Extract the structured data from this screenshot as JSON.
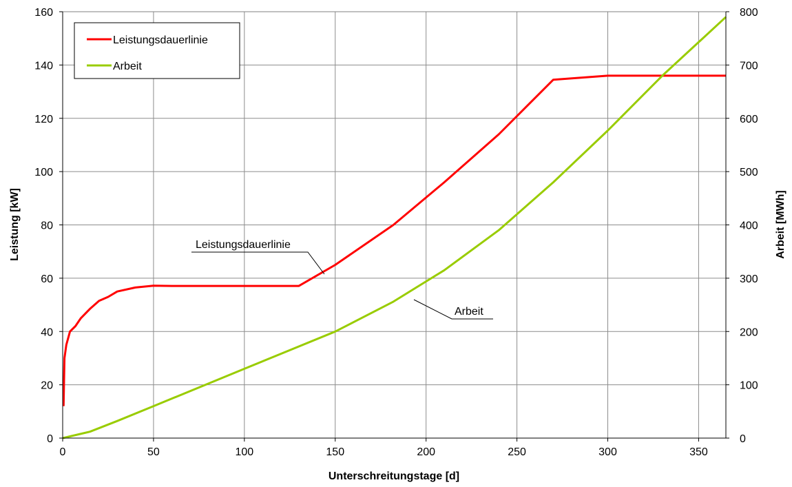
{
  "chart_data": {
    "type": "line",
    "title": "",
    "xlabel": "Unterschreitungstage [d]",
    "ylabel": "Leistung [kW]",
    "y2label": "Arbeit [MWh]",
    "xlim": [
      0,
      365
    ],
    "ylim": [
      0,
      160
    ],
    "y2lim": [
      0,
      800
    ],
    "x_ticks": [
      0,
      50,
      100,
      150,
      200,
      250,
      300,
      350
    ],
    "y_ticks": [
      0,
      20,
      40,
      60,
      80,
      100,
      120,
      140,
      160
    ],
    "y2_ticks": [
      0,
      100,
      200,
      300,
      400,
      500,
      600,
      700,
      800
    ],
    "grid": true,
    "legend_position": "top-left",
    "series": [
      {
        "name": "Leistungsdauerlinie",
        "axis": "left",
        "color": "#ff0000",
        "points": [
          [
            0.5,
            12
          ],
          [
            1,
            30
          ],
          [
            2,
            35
          ],
          [
            4,
            40
          ],
          [
            7,
            42
          ],
          [
            10,
            45
          ],
          [
            15,
            48.5
          ],
          [
            20,
            51.5
          ],
          [
            25,
            53
          ],
          [
            30,
            55
          ],
          [
            40,
            56.5
          ],
          [
            50,
            57.2
          ],
          [
            60,
            57.1
          ],
          [
            130,
            57.1
          ],
          [
            150,
            65
          ],
          [
            182,
            80
          ],
          [
            210,
            96
          ],
          [
            240,
            114
          ],
          [
            270,
            134.5
          ],
          [
            300,
            136
          ],
          [
            365,
            136
          ]
        ]
      },
      {
        "name": "Arbeit",
        "axis": "right",
        "color": "#99cc00",
        "points": [
          [
            0,
            0
          ],
          [
            15,
            12
          ],
          [
            30,
            32
          ],
          [
            50,
            60
          ],
          [
            100,
            130
          ],
          [
            150,
            200
          ],
          [
            182,
            256
          ],
          [
            210,
            315
          ],
          [
            240,
            390
          ],
          [
            270,
            480
          ],
          [
            300,
            577
          ],
          [
            330,
            680
          ],
          [
            365,
            790
          ]
        ]
      }
    ],
    "annotations": [
      {
        "text": "Leistungsdauerlinie",
        "series": "Leistungsdauerlinie"
      },
      {
        "text": "Arbeit",
        "series": "Arbeit"
      }
    ]
  }
}
